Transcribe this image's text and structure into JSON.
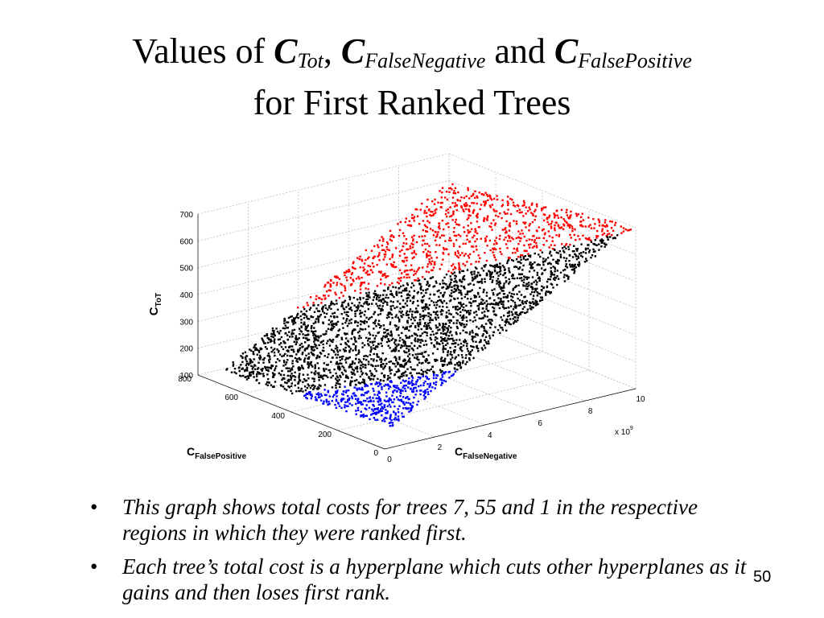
{
  "slide": {
    "title_prefix": "Values of ",
    "title_c": "C",
    "title_sub1": "Tot",
    "title_sep1": ", ",
    "title_sub2": "FalseNegative",
    "title_and": " and ",
    "title_sub3": "FalsePositive",
    "title_line2": "for First Ranked Trees",
    "bullets": [
      "This graph shows total costs for trees 7, 55 and 1 in the respective regions in which they were ranked first.",
      "Each tree’s total cost is a hyperplane which cuts other hyperplanes as it gains and then loses first rank."
    ],
    "bullet_symbol": "•",
    "page_number": "50"
  },
  "chart_data": {
    "type": "scatter",
    "subtype": "3d-scatter",
    "x_axis": {
      "label_main": "C",
      "label_sub": "FalseNegative",
      "ticks": [
        "0",
        "2",
        "4",
        "6",
        "8",
        "10"
      ],
      "range": [
        0,
        10
      ],
      "multiplier": "x 10",
      "multiplier_exp": "9"
    },
    "y_axis": {
      "label_main": "C",
      "label_sub": "FalsePositive",
      "ticks": [
        "0",
        "200",
        "400",
        "600",
        "800"
      ],
      "range": [
        0,
        800
      ]
    },
    "z_axis": {
      "label_main": "C",
      "label_sub": "ToT",
      "ticks": [
        "100",
        "200",
        "300",
        "400",
        "500",
        "600",
        "700"
      ],
      "range": [
        100,
        700
      ]
    },
    "grid": true,
    "series": [
      {
        "color": "#0000ff",
        "region": "x < 3 - 0.005*y",
        "point_count": 450
      },
      {
        "color": "#000000",
        "region": "between",
        "point_count": 2600
      },
      {
        "color": "#ff0000",
        "region": "x > 9.5 - 0.007*y",
        "point_count": 900
      }
    ]
  }
}
